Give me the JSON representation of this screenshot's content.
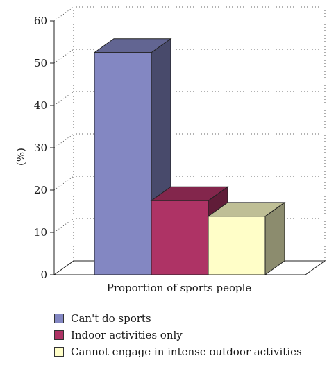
{
  "chart_data": {
    "type": "bar",
    "categories": [
      "Proportion of sports people"
    ],
    "xlabel": "Proportion of sports people",
    "ylabel": "(%)",
    "ylim": [
      0,
      60
    ],
    "yticks": [
      0,
      10,
      20,
      30,
      40,
      50,
      60
    ],
    "grid": true,
    "legend_position": "bottom",
    "series": [
      {
        "name": "Can't do sports",
        "values": [
          52.5
        ],
        "color": "#8387c2"
      },
      {
        "name": "Indoor activities only",
        "values": [
          17.5
        ],
        "color": "#ae3365"
      },
      {
        "name": "Cannot engage in intense outdoor activities",
        "values": [
          13.8
        ],
        "color": "#fffec8"
      }
    ]
  }
}
